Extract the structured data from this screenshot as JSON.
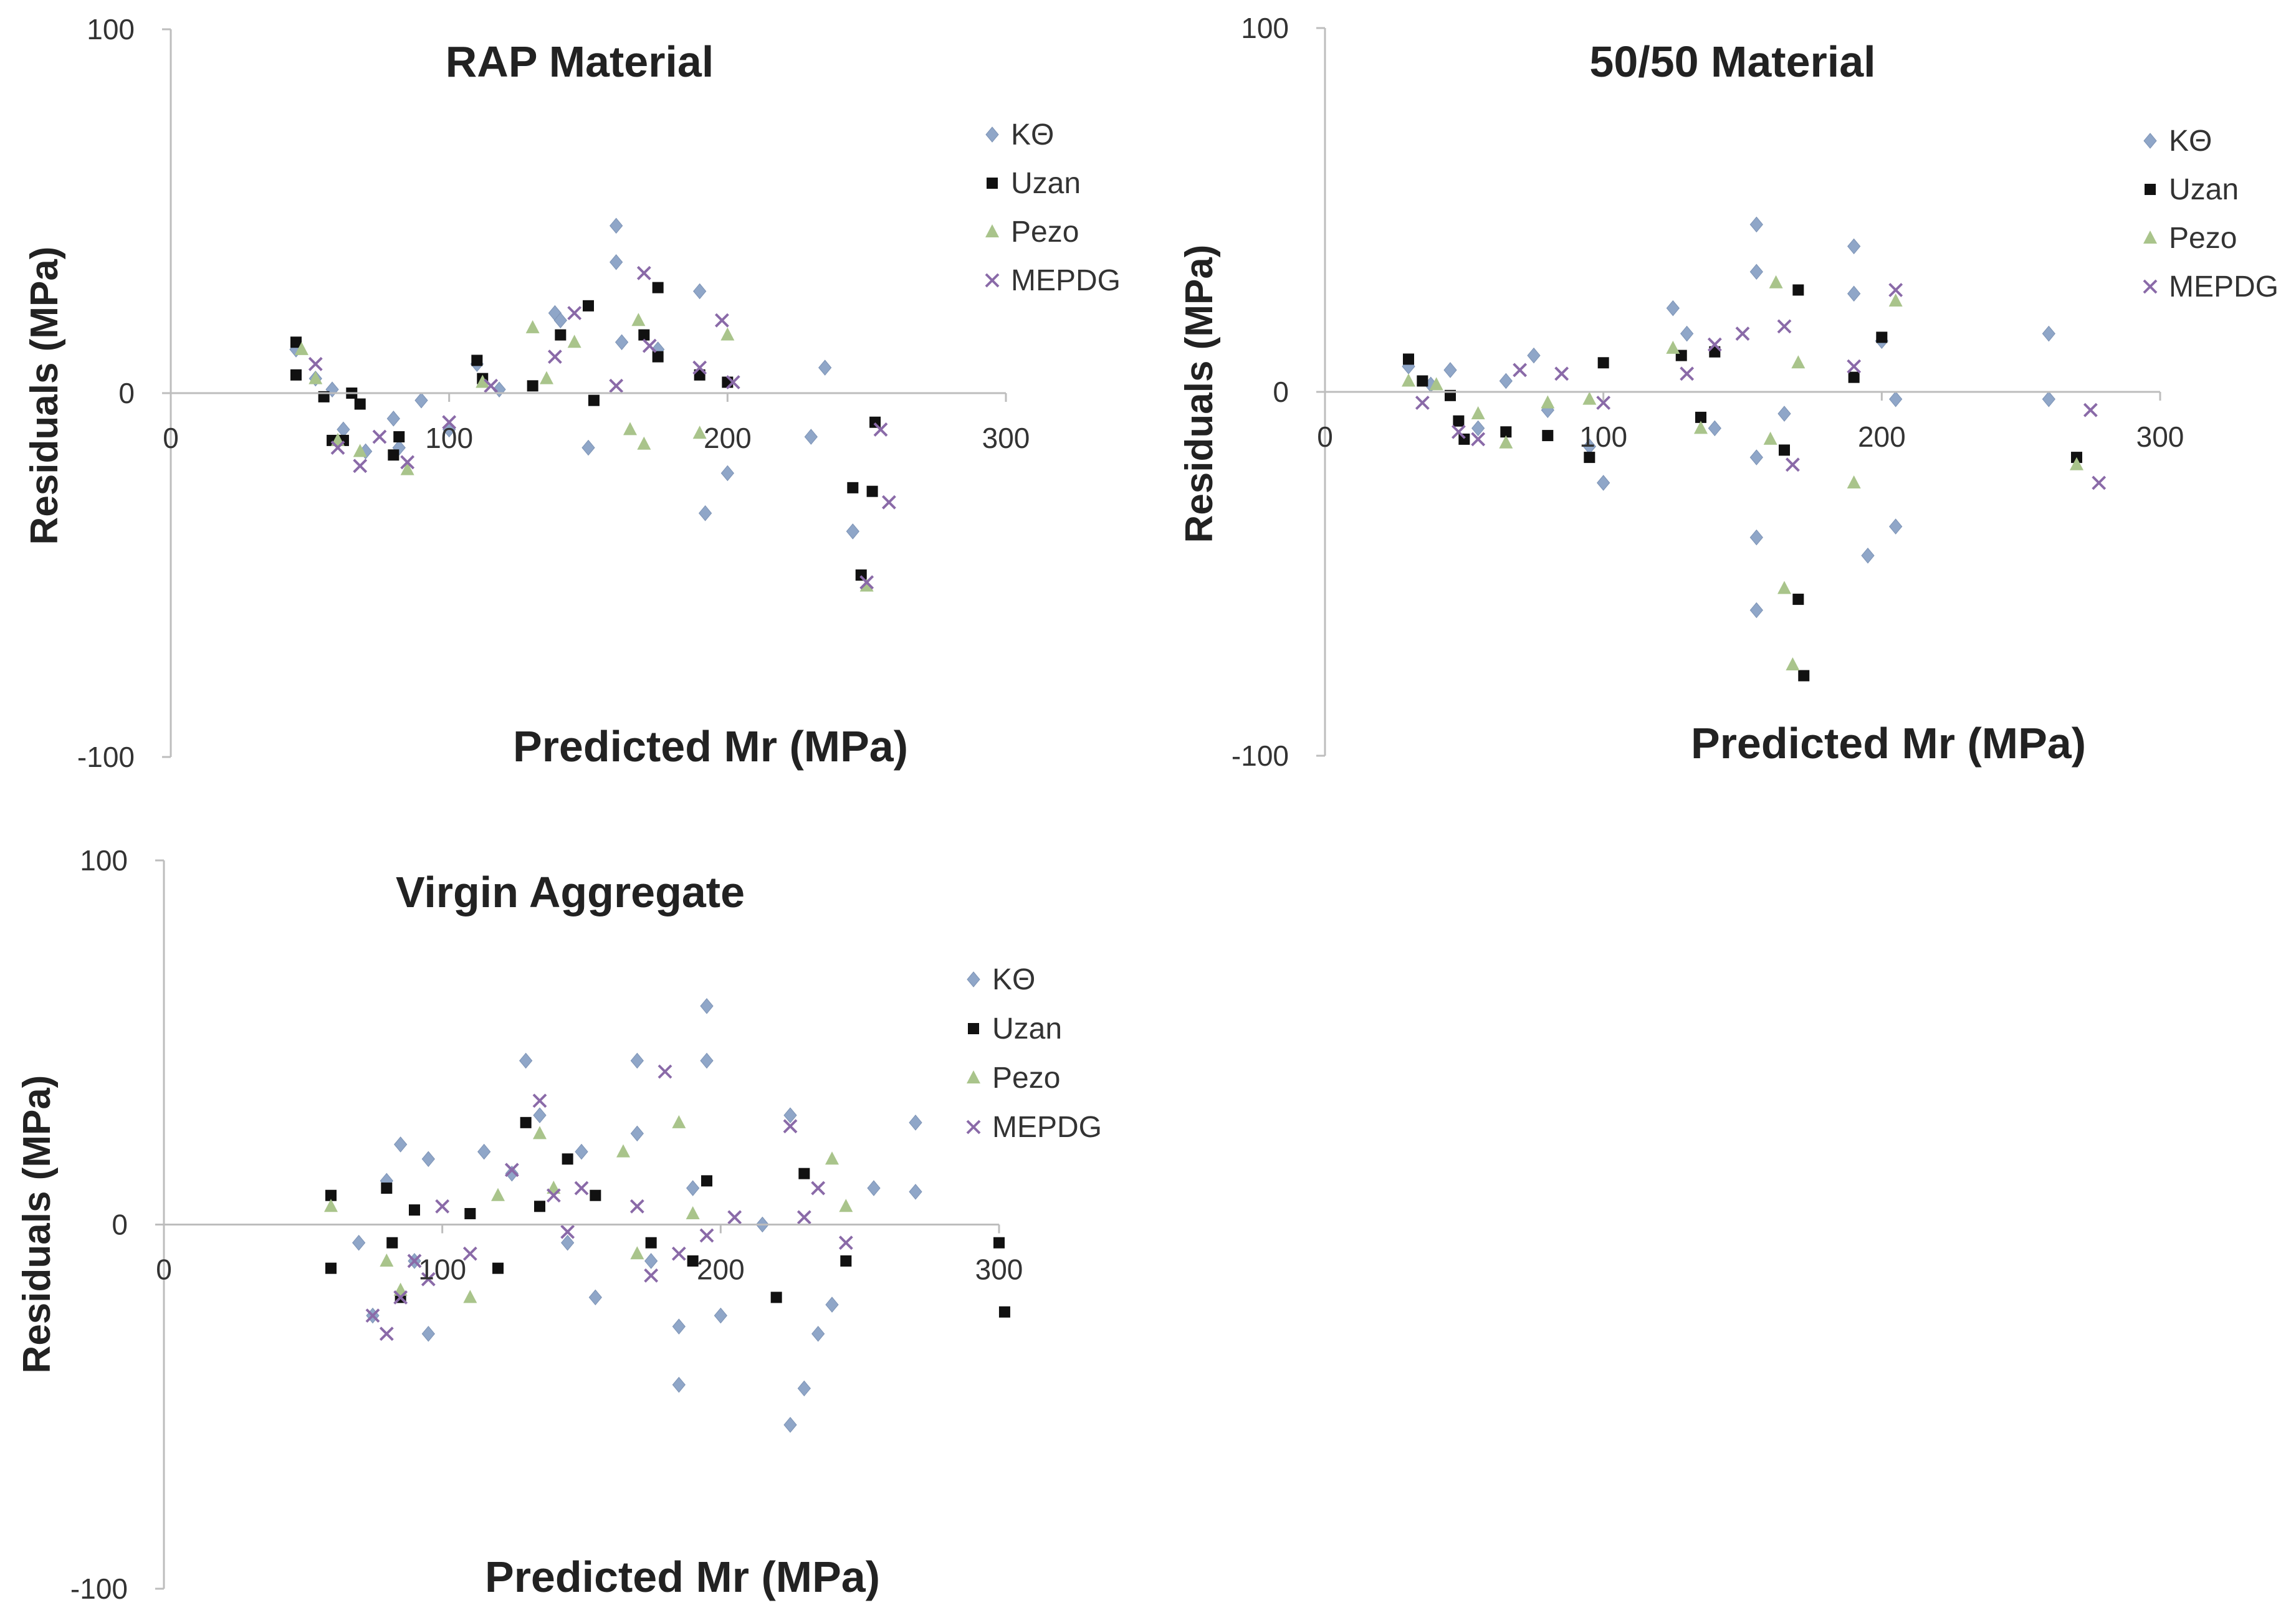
{
  "chart_data": [
    {
      "type": "scatter",
      "title": "RAP Material",
      "xlabel": "Predicted Mr (MPa)",
      "ylabel": "Residuals (MPa)",
      "xlim": [
        0,
        300
      ],
      "ylim": [
        -100,
        100
      ],
      "x_ticks": [
        "0",
        "100",
        "200",
        "300"
      ],
      "y_ticks": [
        "100",
        "0",
        "-100"
      ],
      "grid": false,
      "legend_position": "top-right",
      "series": [
        {
          "name": "KΘ",
          "color": "#8fa6c8",
          "marker": "diamond",
          "x": [
            45,
            52,
            58,
            62,
            70,
            80,
            82,
            90,
            100,
            110,
            118,
            138,
            140,
            150,
            160,
            160,
            162,
            175,
            190,
            192,
            200,
            230,
            235,
            245
          ],
          "y": [
            12,
            4,
            1,
            -10,
            -16,
            -7,
            -15,
            -2,
            -10,
            8,
            1,
            22,
            20,
            -15,
            46,
            36,
            14,
            12,
            28,
            -33,
            -22,
            -12,
            7,
            -38
          ]
        },
        {
          "name": "Uzan",
          "color": "#111111",
          "marker": "square",
          "x": [
            45,
            45,
            55,
            58,
            62,
            65,
            68,
            80,
            82,
            110,
            112,
            130,
            140,
            150,
            152,
            170,
            175,
            175,
            190,
            200,
            245,
            248,
            252,
            253
          ],
          "y": [
            14,
            5,
            -1,
            -13,
            -13,
            0,
            -3,
            -17,
            -12,
            9,
            4,
            2,
            16,
            24,
            -2,
            16,
            29,
            10,
            5,
            3,
            -26,
            -50,
            -27,
            -8
          ],
          "aside": "draws the square markers"
        },
        {
          "name": "Pezo",
          "color": "#a9c48b",
          "marker": "triangle",
          "x": [
            47,
            52,
            60,
            68,
            85,
            112,
            130,
            135,
            145,
            165,
            168,
            170,
            190,
            200,
            250
          ],
          "y": [
            12,
            4,
            -13,
            -16,
            -21,
            3,
            18,
            4,
            14,
            -10,
            20,
            -14,
            -11,
            16,
            -53
          ]
        },
        {
          "name": "MEPDG",
          "color": "#8a6aa8",
          "marker": "x",
          "x": [
            52,
            60,
            68,
            75,
            85,
            100,
            115,
            138,
            145,
            160,
            170,
            172,
            190,
            198,
            202,
            250,
            255,
            258
          ],
          "y": [
            8,
            -15,
            -20,
            -12,
            -19,
            -8,
            2,
            10,
            22,
            2,
            33,
            13,
            7,
            20,
            3,
            -52,
            -10,
            -30
          ]
        }
      ]
    },
    {
      "type": "scatter",
      "title": "50/50 Material",
      "xlabel": "Predicted Mr (MPa)",
      "ylabel": "Residuals (MPa)",
      "xlim": [
        0,
        300
      ],
      "ylim": [
        -100,
        100
      ],
      "x_ticks": [
        "0",
        "100",
        "200",
        "300"
      ],
      "y_ticks": [
        "100",
        "0",
        "-100"
      ],
      "grid": false,
      "legend_position": "top-right",
      "series": [
        {
          "name": "KΘ",
          "color": "#8fa6c8",
          "marker": "diamond",
          "x": [
            30,
            38,
            45,
            55,
            65,
            75,
            80,
            95,
            100,
            125,
            130,
            140,
            155,
            155,
            155,
            155,
            155,
            165,
            190,
            190,
            195,
            200,
            205,
            205,
            260,
            260
          ],
          "y": [
            7,
            2,
            6,
            -10,
            3,
            10,
            -5,
            -15,
            -25,
            23,
            16,
            -10,
            46,
            33,
            -40,
            -60,
            -18,
            -6,
            40,
            27,
            -45,
            14,
            -2,
            -37,
            16,
            -2
          ],
          "aside": "draws the blue diamonds"
        },
        {
          "name": "Uzan",
          "color": "#111111",
          "marker": "square",
          "x": [
            30,
            35,
            45,
            48,
            50,
            65,
            80,
            95,
            100,
            128,
            135,
            140,
            165,
            170,
            170,
            172,
            190,
            200,
            270
          ],
          "y": [
            9,
            3,
            -1,
            -8,
            -13,
            -11,
            -12,
            -18,
            8,
            10,
            -7,
            11,
            -16,
            28,
            -57,
            -78,
            4,
            15,
            -18
          ],
          "aside": "draws the square markers"
        },
        {
          "name": "Pezo",
          "color": "#a9c48b",
          "marker": "triangle",
          "x": [
            30,
            40,
            55,
            65,
            80,
            95,
            125,
            135,
            160,
            162,
            165,
            168,
            170,
            190,
            205,
            270
          ],
          "y": [
            3,
            2,
            -6,
            -14,
            -3,
            -2,
            12,
            -10,
            -13,
            30,
            -54,
            -75,
            8,
            -25,
            25,
            -20
          ],
          "aside": "draws the green triangles"
        },
        {
          "name": "MEPDG",
          "color": "#8a6aa8",
          "marker": "x",
          "x": [
            35,
            48,
            55,
            70,
            85,
            100,
            130,
            140,
            150,
            165,
            168,
            190,
            205,
            275,
            278
          ],
          "y": [
            -3,
            -11,
            -13,
            6,
            5,
            -3,
            5,
            13,
            16,
            18,
            -20,
            7,
            28,
            -5,
            -25
          ]
        }
      ]
    },
    {
      "type": "scatter",
      "title": "Virgin Aggregate",
      "xlabel": "Predicted Mr (MPa)",
      "ylabel": "Residuals (MPa)",
      "xlim": [
        0,
        300
      ],
      "ylim": [
        -100,
        100
      ],
      "x_ticks": [
        "0",
        "100",
        "200",
        "300"
      ],
      "y_ticks": [
        "100",
        "0",
        "-100"
      ],
      "grid": false,
      "legend_position": "top-right",
      "series": [
        {
          "name": "KΘ",
          "color": "#8fa6c8",
          "marker": "diamond",
          "x": [
            70,
            75,
            80,
            85,
            90,
            95,
            95,
            115,
            125,
            130,
            135,
            145,
            150,
            155,
            170,
            170,
            175,
            185,
            185,
            190,
            195,
            195,
            200,
            215,
            225,
            225,
            230,
            235,
            240,
            255,
            270,
            270
          ],
          "y": [
            -5,
            -25,
            12,
            22,
            -10,
            -30,
            18,
            20,
            14,
            45,
            30,
            -5,
            20,
            -20,
            45,
            25,
            -10,
            -28,
            -44,
            10,
            60,
            45,
            -25,
            0,
            30,
            -55,
            -45,
            -30,
            -22,
            10,
            28,
            9
          ]
        },
        {
          "name": "Uzan",
          "color": "#111111",
          "marker": "square",
          "x": [
            60,
            60,
            80,
            82,
            85,
            90,
            110,
            120,
            130,
            135,
            145,
            155,
            175,
            190,
            195,
            220,
            230,
            245,
            300,
            302
          ],
          "y": [
            8,
            -12,
            10,
            -5,
            -20,
            4,
            3,
            -12,
            28,
            5,
            18,
            8,
            -5,
            -10,
            12,
            -20,
            14,
            -10,
            -5,
            -24
          ]
        },
        {
          "name": "Pezo",
          "color": "#a9c48b",
          "marker": "triangle",
          "x": [
            60,
            80,
            85,
            110,
            120,
            135,
            140,
            165,
            170,
            185,
            190,
            240,
            245
          ],
          "y": [
            5,
            -10,
            -18,
            -20,
            8,
            25,
            10,
            20,
            -8,
            28,
            3,
            18,
            5
          ]
        },
        {
          "name": "MEPDG",
          "color": "#8a6aa8",
          "marker": "x",
          "x": [
            75,
            80,
            85,
            90,
            95,
            100,
            110,
            125,
            135,
            140,
            145,
            150,
            170,
            175,
            180,
            185,
            195,
            205,
            225,
            230,
            235,
            245
          ],
          "y": [
            -25,
            -30,
            -20,
            -10,
            -15,
            5,
            -8,
            15,
            34,
            8,
            -2,
            10,
            5,
            -14,
            42,
            -8,
            -3,
            2,
            27,
            2,
            10,
            -5
          ]
        }
      ]
    }
  ]
}
